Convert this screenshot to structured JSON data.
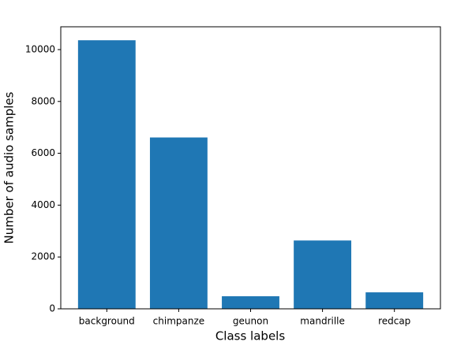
{
  "chart_data": {
    "type": "bar",
    "x_label": "Class labels",
    "y_label": "Number of audio samples",
    "categories": [
      "background",
      "chimpanze",
      "geunon",
      "mandrille",
      "redcap"
    ],
    "values": [
      10360,
      6610,
      485,
      2636,
      636
    ],
    "color": "#1f77b4",
    "ylim": [
      0,
      10880
    ],
    "yticks": [
      0,
      2000,
      4000,
      6000,
      8000,
      10000
    ]
  }
}
